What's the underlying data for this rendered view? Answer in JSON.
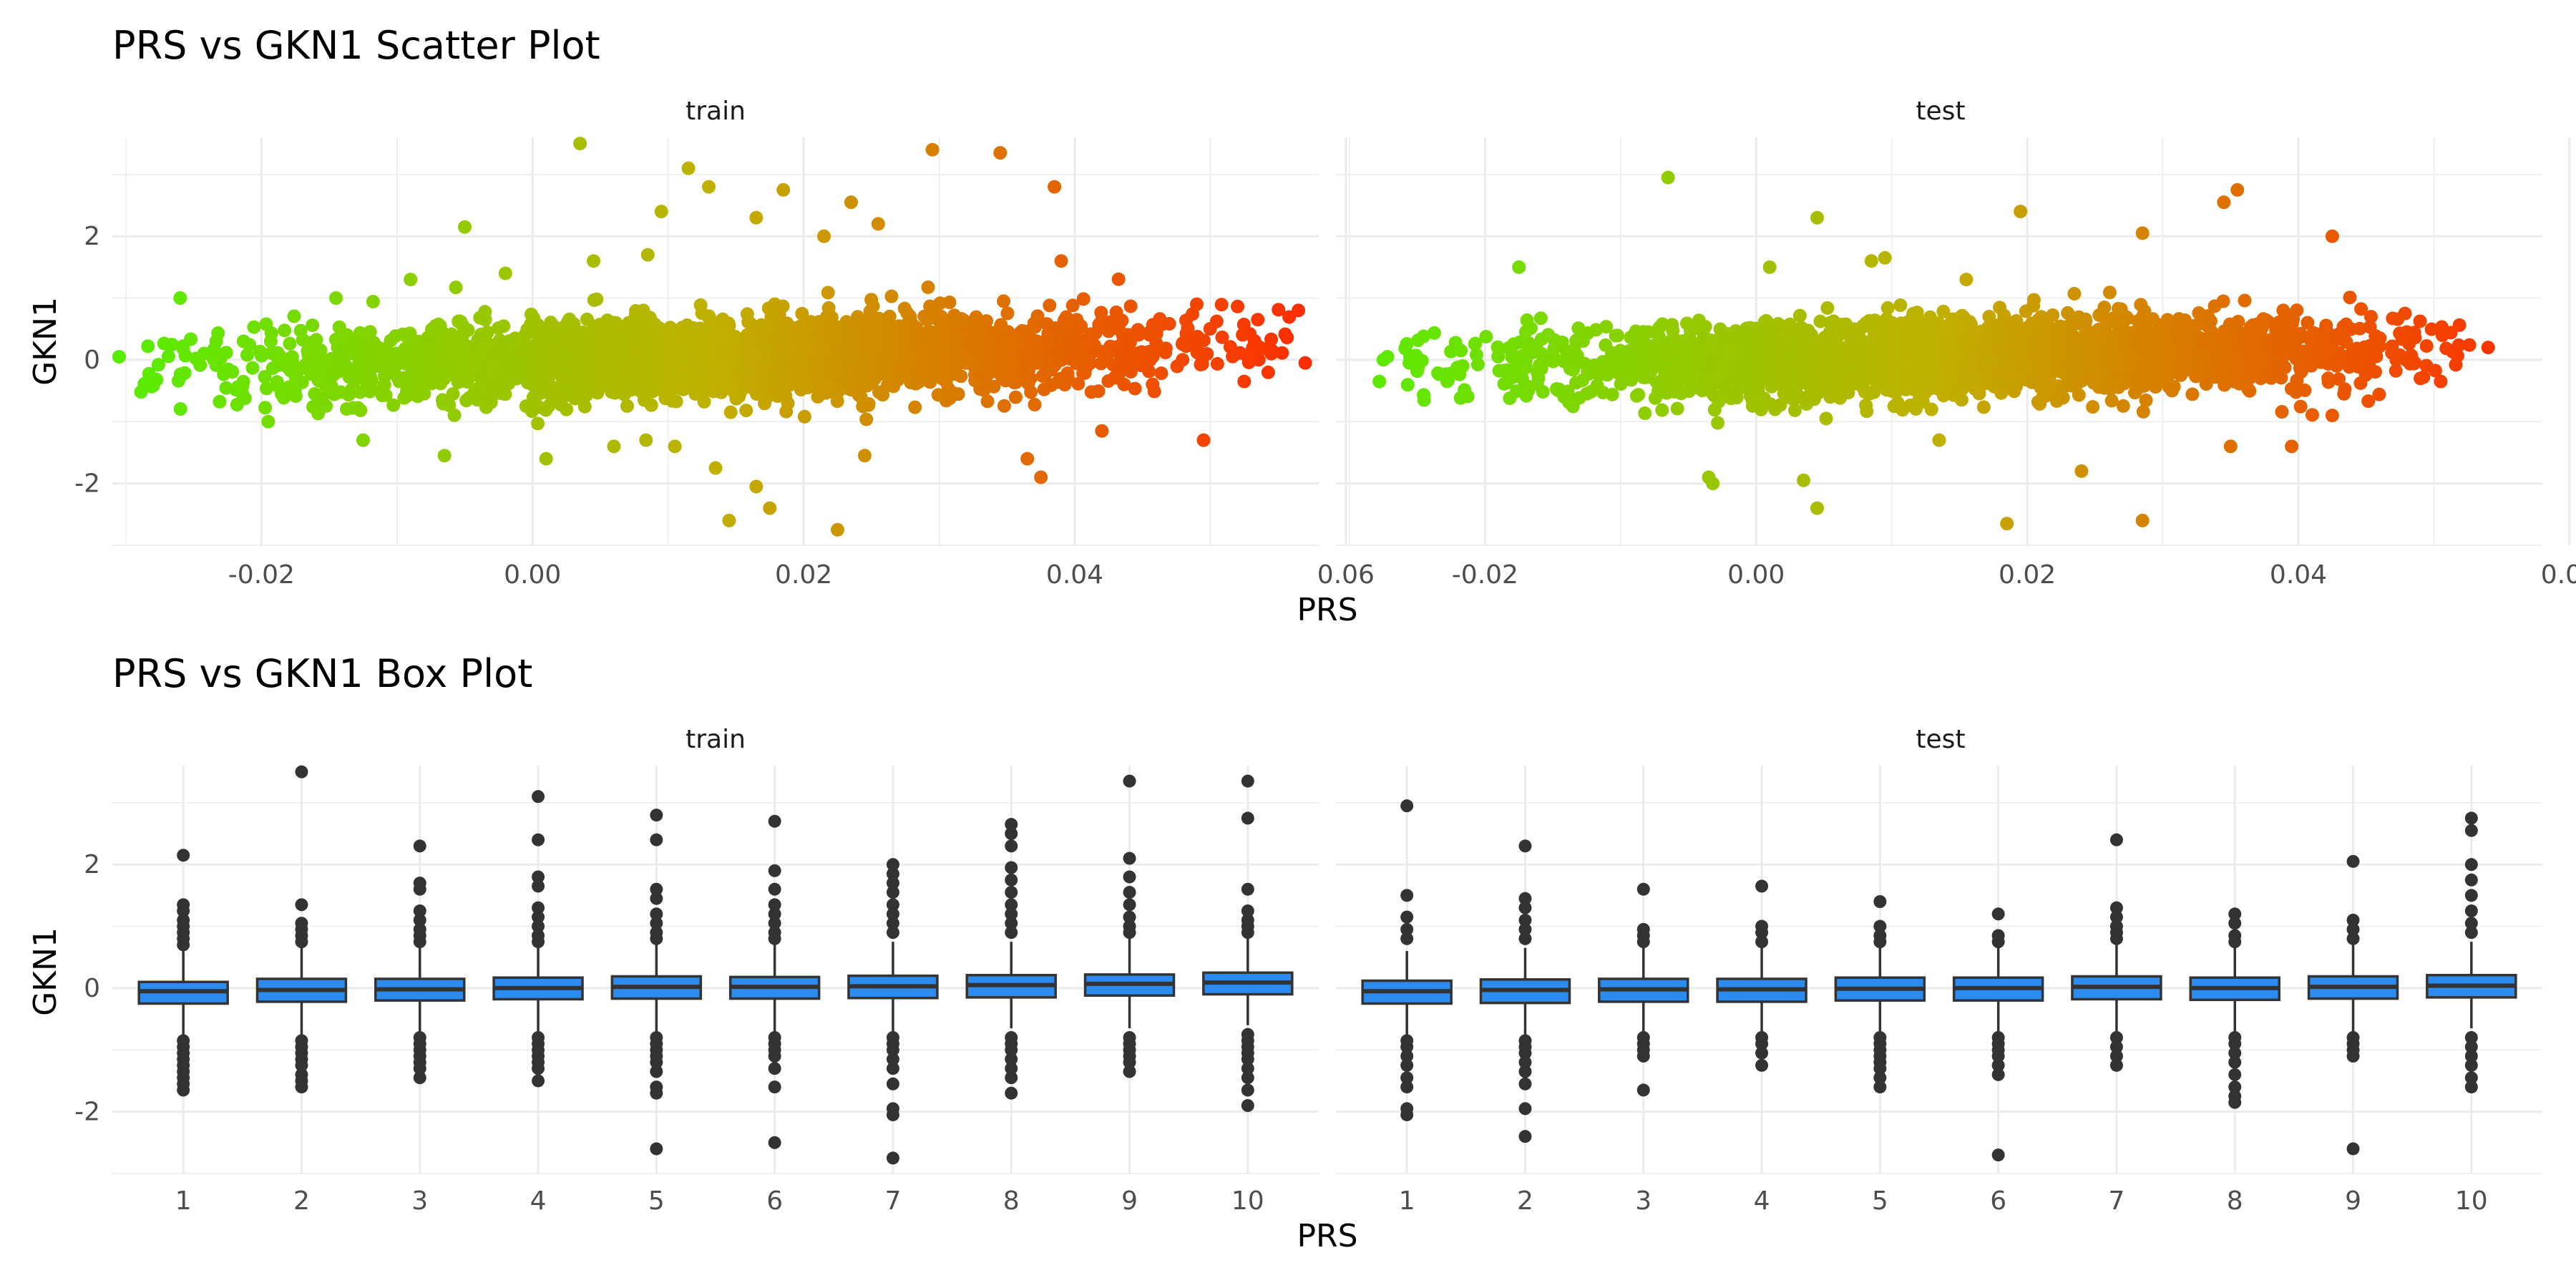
{
  "chart_data": [
    {
      "type": "scatter",
      "title": "PRS vs GKN1 Scatter Plot",
      "xlabel": "PRS",
      "ylabel": "GKN1",
      "facets": [
        "train",
        "test"
      ],
      "xlim": [
        -0.031,
        0.058
      ],
      "ylim": [
        -3.0,
        3.6
      ],
      "x_ticks": [
        -0.02,
        0.0,
        0.02,
        0.04,
        0.06
      ],
      "x_tick_labels": [
        "-0.02",
        "0.00",
        "0.02",
        "0.04",
        "0.06"
      ],
      "y_ticks": [
        -2,
        0,
        2
      ],
      "y_tick_labels": [
        "-2",
        "0",
        "2"
      ],
      "color_scale": {
        "low": "#55ee00",
        "mid": "#c0b000",
        "high": "#ff2a00"
      },
      "grid": true,
      "series": [
        {
          "facet": "train",
          "points": [
            [
              -0.0305,
              0.05
            ],
            [
              -0.028,
              -0.42
            ],
            [
              -0.026,
              1.0
            ],
            [
              -0.0195,
              -1.0
            ],
            [
              -0.0145,
              1.0
            ],
            [
              -0.0125,
              -1.3
            ],
            [
              -0.009,
              1.3
            ],
            [
              -0.0065,
              -1.55
            ],
            [
              -0.005,
              2.15
            ],
            [
              -0.002,
              1.4
            ],
            [
              0.001,
              -1.6
            ],
            [
              0.0035,
              3.5
            ],
            [
              0.006,
              -1.4
            ],
            [
              0.0045,
              1.6
            ],
            [
              0.0085,
              1.7
            ],
            [
              0.0095,
              2.4
            ],
            [
              0.0115,
              3.1
            ],
            [
              0.013,
              2.8
            ],
            [
              0.0105,
              -1.4
            ],
            [
              0.0135,
              -1.75
            ],
            [
              0.0145,
              -2.6
            ],
            [
              0.0165,
              -2.05
            ],
            [
              0.0165,
              2.3
            ],
            [
              0.0175,
              -2.4
            ],
            [
              0.0185,
              2.75
            ],
            [
              0.0215,
              2.0
            ],
            [
              0.0225,
              -2.75
            ],
            [
              0.0235,
              2.55
            ],
            [
              0.0255,
              2.2
            ],
            [
              0.0245,
              -1.55
            ],
            [
              0.0295,
              3.4
            ],
            [
              0.0345,
              3.35
            ],
            [
              0.0365,
              -1.6
            ],
            [
              0.0375,
              -1.9
            ],
            [
              0.0385,
              2.8
            ],
            [
              0.039,
              1.6
            ],
            [
              0.042,
              -1.15
            ],
            [
              0.049,
              0.9
            ],
            [
              0.0495,
              -1.3
            ],
            [
              0.0545,
              0.1
            ],
            [
              0.0565,
              0.8
            ],
            [
              0.057,
              -0.05
            ],
            [
              0.0535,
              0.65
            ],
            [
              0.0525,
              -0.35
            ]
          ]
        },
        {
          "facet": "test",
          "points": [
            [
              -0.0275,
              0.0
            ],
            [
              -0.0278,
              -0.35
            ],
            [
              -0.0272,
              0.05
            ],
            [
              -0.0245,
              -0.65
            ],
            [
              -0.0175,
              1.5
            ],
            [
              -0.0065,
              2.95
            ],
            [
              -0.0035,
              -1.9
            ],
            [
              -0.0032,
              -2.0
            ],
            [
              0.001,
              1.5
            ],
            [
              0.0045,
              2.3
            ],
            [
              0.0035,
              -1.95
            ],
            [
              0.0045,
              -2.4
            ],
            [
              0.0085,
              1.6
            ],
            [
              0.0095,
              1.65
            ],
            [
              0.0135,
              -1.3
            ],
            [
              0.0155,
              1.3
            ],
            [
              0.0185,
              -2.65
            ],
            [
              0.0195,
              2.4
            ],
            [
              0.024,
              -1.8
            ],
            [
              0.0285,
              -2.6
            ],
            [
              0.0285,
              2.05
            ],
            [
              0.0345,
              2.55
            ],
            [
              0.0355,
              2.75
            ],
            [
              0.035,
              -1.4
            ],
            [
              0.0395,
              -1.4
            ],
            [
              0.0425,
              2.0
            ],
            [
              0.0425,
              -0.9
            ],
            [
              0.0505,
              0.5
            ],
            [
              0.0505,
              -0.35
            ],
            [
              0.054,
              0.2
            ],
            [
              0.048,
              0.45
            ],
            [
              0.049,
              -0.3
            ]
          ]
        }
      ],
      "bulk": [
        {
          "facet": "train",
          "x_range": [
            -0.025,
            0.054
          ],
          "center": 0.0,
          "spread": 0.6,
          "slope": 8.0
        },
        {
          "facet": "test",
          "x_range": [
            -0.022,
            0.051
          ],
          "center": 0.0,
          "spread": 0.55,
          "slope": 7.0
        }
      ]
    },
    {
      "type": "box",
      "title": "PRS vs GKN1 Box Plot",
      "xlabel": "PRS",
      "ylabel": "GKN1",
      "facets": [
        "train",
        "test"
      ],
      "categories": [
        "1",
        "2",
        "3",
        "4",
        "5",
        "6",
        "7",
        "8",
        "9",
        "10"
      ],
      "ylim": [
        -3.0,
        3.6
      ],
      "y_ticks": [
        -2,
        0,
        2
      ],
      "y_tick_labels": [
        "-2",
        "0",
        "2"
      ],
      "box_color": "#2b8bef",
      "outline_color": "#333333",
      "grid": true,
      "series": [
        {
          "facet": "train",
          "boxes": [
            {
              "q1": -0.25,
              "median": -0.05,
              "q3": 0.1,
              "whisker_low": -0.8,
              "whisker_high": 0.6,
              "outliers": [
                2.15,
                1.35,
                1.25,
                1.1,
                1.0,
                0.9,
                0.8,
                0.7,
                -0.85,
                -0.95,
                -1.05,
                -1.15,
                -1.25,
                -1.35,
                -1.45,
                -1.55,
                -1.65
              ]
            },
            {
              "q1": -0.22,
              "median": -0.03,
              "q3": 0.15,
              "whisker_low": -0.75,
              "whisker_high": 0.65,
              "outliers": [
                3.5,
                1.35,
                1.05,
                0.95,
                0.85,
                0.75,
                -0.85,
                -0.95,
                -1.05,
                -1.15,
                -1.25,
                -1.4,
                -1.5,
                -1.6
              ]
            },
            {
              "q1": -0.2,
              "median": -0.02,
              "q3": 0.15,
              "whisker_low": -0.7,
              "whisker_high": 0.65,
              "outliers": [
                2.3,
                1.7,
                1.6,
                1.25,
                1.1,
                0.95,
                0.85,
                0.75,
                -0.8,
                -0.9,
                -1.0,
                -1.1,
                -1.2,
                -1.3,
                -1.45
              ]
            },
            {
              "q1": -0.18,
              "median": 0.0,
              "q3": 0.17,
              "whisker_low": -0.7,
              "whisker_high": 0.7,
              "outliers": [
                3.1,
                2.4,
                1.8,
                1.65,
                1.3,
                1.15,
                1.0,
                0.85,
                0.75,
                -0.8,
                -0.9,
                -1.0,
                -1.1,
                -1.2,
                -1.3,
                -1.5
              ]
            },
            {
              "q1": -0.17,
              "median": 0.02,
              "q3": 0.19,
              "whisker_low": -0.7,
              "whisker_high": 0.7,
              "outliers": [
                2.8,
                2.4,
                1.6,
                1.45,
                1.2,
                1.05,
                0.9,
                0.8,
                -0.8,
                -0.9,
                -1.0,
                -1.1,
                -1.2,
                -1.35,
                -1.6,
                -1.7,
                -2.6
              ]
            },
            {
              "q1": -0.17,
              "median": 0.02,
              "q3": 0.18,
              "whisker_low": -0.7,
              "whisker_high": 0.7,
              "outliers": [
                2.7,
                1.9,
                1.6,
                1.35,
                1.2,
                1.05,
                0.9,
                0.8,
                -0.8,
                -0.9,
                -1.0,
                -1.1,
                -1.3,
                -1.6,
                -2.5
              ]
            },
            {
              "q1": -0.16,
              "median": 0.03,
              "q3": 0.2,
              "whisker_low": -0.7,
              "whisker_high": 0.75,
              "outliers": [
                2.0,
                1.85,
                1.7,
                1.55,
                1.35,
                1.2,
                1.05,
                0.9,
                -0.8,
                -0.9,
                -1.0,
                -1.15,
                -1.3,
                -1.55,
                -1.95,
                -2.05,
                -2.75
              ]
            },
            {
              "q1": -0.15,
              "median": 0.05,
              "q3": 0.21,
              "whisker_low": -0.65,
              "whisker_high": 0.75,
              "outliers": [
                2.65,
                2.5,
                2.3,
                1.95,
                1.75,
                1.55,
                1.35,
                1.2,
                1.05,
                0.9,
                -0.8,
                -0.9,
                -1.0,
                -1.15,
                -1.3,
                -1.45,
                -1.7
              ]
            },
            {
              "q1": -0.12,
              "median": 0.07,
              "q3": 0.22,
              "whisker_low": -0.65,
              "whisker_high": 0.8,
              "outliers": [
                3.35,
                2.1,
                1.8,
                1.55,
                1.35,
                1.15,
                1.0,
                0.9,
                -0.8,
                -0.9,
                -1.0,
                -1.1,
                -1.2,
                -1.35
              ]
            },
            {
              "q1": -0.1,
              "median": 0.09,
              "q3": 0.25,
              "whisker_low": -0.6,
              "whisker_high": 0.85,
              "outliers": [
                3.35,
                2.75,
                1.6,
                1.25,
                1.1,
                1.0,
                0.9,
                -0.75,
                -0.85,
                -0.95,
                -1.05,
                -1.15,
                -1.3,
                -1.45,
                -1.65,
                -1.9
              ]
            }
          ]
        },
        {
          "facet": "test",
          "boxes": [
            {
              "q1": -0.25,
              "median": -0.05,
              "q3": 0.12,
              "whisker_low": -0.75,
              "whisker_high": 0.6,
              "outliers": [
                2.95,
                1.5,
                1.15,
                0.95,
                0.8,
                -0.85,
                -0.95,
                -1.1,
                -1.25,
                -1.45,
                -1.6,
                -1.95,
                -2.05
              ]
            },
            {
              "q1": -0.24,
              "median": -0.03,
              "q3": 0.14,
              "whisker_low": -0.75,
              "whisker_high": 0.65,
              "outliers": [
                2.3,
                1.45,
                1.3,
                1.1,
                0.95,
                0.8,
                -0.85,
                -0.95,
                -1.05,
                -1.2,
                -1.35,
                -1.55,
                -1.95,
                -2.4
              ]
            },
            {
              "q1": -0.22,
              "median": -0.02,
              "q3": 0.15,
              "whisker_low": -0.7,
              "whisker_high": 0.65,
              "outliers": [
                1.6,
                0.95,
                0.85,
                0.75,
                -0.8,
                -0.9,
                -1.0,
                -1.1,
                -1.65
              ]
            },
            {
              "q1": -0.22,
              "median": -0.02,
              "q3": 0.15,
              "whisker_low": -0.7,
              "whisker_high": 0.65,
              "outliers": [
                1.65,
                1.0,
                0.9,
                0.75,
                -0.8,
                -0.9,
                -1.05,
                -1.25
              ]
            },
            {
              "q1": -0.2,
              "median": -0.01,
              "q3": 0.17,
              "whisker_low": -0.7,
              "whisker_high": 0.7,
              "outliers": [
                1.4,
                1.0,
                0.85,
                0.75,
                -0.8,
                -0.9,
                -1.0,
                -1.1,
                -1.2,
                -1.3,
                -1.45,
                -1.6
              ]
            },
            {
              "q1": -0.2,
              "median": 0.0,
              "q3": 0.17,
              "whisker_low": -0.7,
              "whisker_high": 0.7,
              "outliers": [
                1.2,
                0.85,
                0.75,
                -0.8,
                -0.9,
                -1.0,
                -1.1,
                -1.25,
                -1.4,
                -2.7
              ]
            },
            {
              "q1": -0.18,
              "median": 0.02,
              "q3": 0.19,
              "whisker_low": -0.7,
              "whisker_high": 0.72,
              "outliers": [
                2.4,
                1.3,
                1.15,
                1.0,
                0.9,
                0.8,
                -0.8,
                -0.95,
                -1.1,
                -1.25
              ]
            },
            {
              "q1": -0.19,
              "median": 0.0,
              "q3": 0.17,
              "whisker_low": -0.7,
              "whisker_high": 0.7,
              "outliers": [
                1.2,
                1.05,
                0.85,
                0.75,
                -0.8,
                -0.9,
                -1.05,
                -1.2,
                -1.4,
                -1.6,
                -1.75,
                -1.85
              ]
            },
            {
              "q1": -0.17,
              "median": 0.02,
              "q3": 0.19,
              "whisker_low": -0.7,
              "whisker_high": 0.72,
              "outliers": [
                2.05,
                1.1,
                0.95,
                0.8,
                -0.8,
                -0.9,
                -1.0,
                -1.1,
                -2.6
              ]
            },
            {
              "q1": -0.15,
              "median": 0.04,
              "q3": 0.21,
              "whisker_low": -0.65,
              "whisker_high": 0.75,
              "outliers": [
                2.75,
                2.55,
                2.0,
                1.75,
                1.5,
                1.25,
                1.05,
                0.9,
                -0.8,
                -0.95,
                -1.1,
                -1.25,
                -1.45,
                -1.6
              ]
            }
          ]
        }
      ]
    }
  ]
}
